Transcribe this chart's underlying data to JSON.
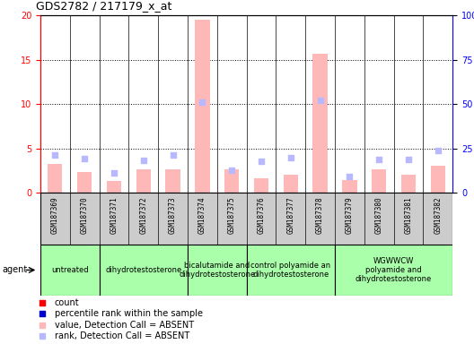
{
  "title": "GDS2782 / 217179_x_at",
  "samples": [
    "GSM187369",
    "GSM187370",
    "GSM187371",
    "GSM187372",
    "GSM187373",
    "GSM187374",
    "GSM187375",
    "GSM187376",
    "GSM187377",
    "GSM187378",
    "GSM187379",
    "GSM187380",
    "GSM187381",
    "GSM187382"
  ],
  "count_values": [
    3.2,
    2.3,
    1.3,
    2.6,
    2.6,
    19.5,
    2.6,
    1.6,
    2.0,
    15.7,
    1.4,
    2.6,
    2.0,
    3.0
  ],
  "rank_values": [
    4.3,
    3.8,
    2.2,
    3.6,
    4.3,
    10.2,
    2.5,
    3.5,
    3.9,
    10.4,
    1.8,
    3.7,
    3.7,
    4.8
  ],
  "agent_groups": [
    {
      "label": "untreated",
      "start": 0,
      "end": 2,
      "color": "#aaffaa"
    },
    {
      "label": "dihydrotestosterone",
      "start": 2,
      "end": 5,
      "color": "#aaffaa"
    },
    {
      "label": "bicalutamide and\ndihydrotestosterone",
      "start": 5,
      "end": 7,
      "color": "#aaffaa"
    },
    {
      "label": "control polyamide an\ndihydrotestosterone",
      "start": 7,
      "end": 10,
      "color": "#aaffaa"
    },
    {
      "label": "WGWWCW\npolyamide and\ndihydrotestosterone",
      "start": 10,
      "end": 14,
      "color": "#aaffaa"
    }
  ],
  "ylim_left": [
    0,
    20
  ],
  "ylim_right": [
    0,
    100
  ],
  "yticks_left": [
    0,
    5,
    10,
    15,
    20
  ],
  "ytick_labels_left": [
    "0",
    "5",
    "10",
    "15",
    "20"
  ],
  "yticks_right": [
    0,
    25,
    50,
    75,
    100
  ],
  "ytick_labels_right": [
    "0",
    "25",
    "50",
    "75",
    "100%"
  ],
  "bar_color_absent": "#ffb8b8",
  "square_color_absent": "#b8b8ff",
  "legend_items": [
    {
      "color": "#ff0000",
      "label": "count",
      "marker": "s"
    },
    {
      "color": "#0000cc",
      "label": "percentile rank within the sample",
      "marker": "s"
    },
    {
      "color": "#ffb8b8",
      "label": "value, Detection Call = ABSENT",
      "marker": "s"
    },
    {
      "color": "#b8b8ff",
      "label": "rank, Detection Call = ABSENT",
      "marker": "s"
    }
  ],
  "sample_bg_color": "#cccccc",
  "agent_label": "agent",
  "grid_yticks": [
    5,
    10,
    15
  ],
  "bar_width": 0.5,
  "square_size": 18
}
